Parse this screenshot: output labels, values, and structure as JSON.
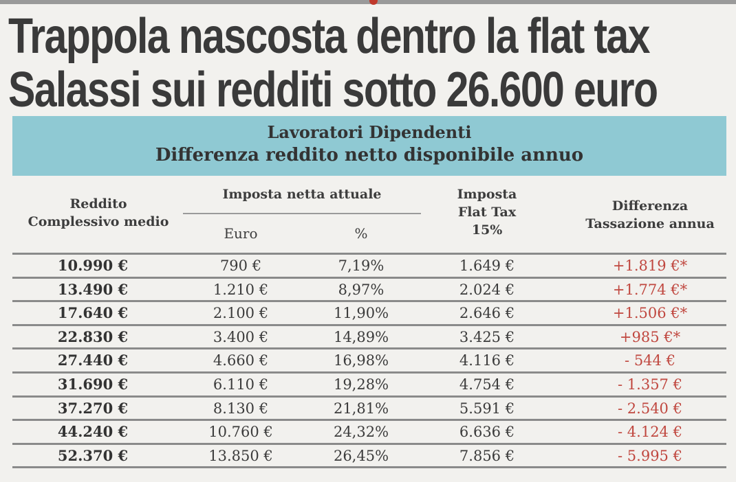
{
  "headline": {
    "line1": "Trappola nascosta dentro la flat tax",
    "line2": "Salassi sui redditi sotto 26.600 euro"
  },
  "banner": {
    "line1": "Lavoratori Dipendenti",
    "line2": "Differenza reddito netto disponibile annuo"
  },
  "columns": {
    "reddito": [
      "Reddito",
      "Complessivo medio"
    ],
    "imposta_attuale": "Imposta netta attuale",
    "euro": "Euro",
    "percent": "%",
    "flat_tax": [
      "Imposta",
      "Flat Tax",
      "15%"
    ],
    "differenza": [
      "Differenza",
      "Tassazione annua"
    ]
  },
  "colors": {
    "banner": "#8fc9d3",
    "difference_text": "#c0473f"
  },
  "rows": [
    [
      "10.990 €",
      "790 €",
      "7,19%",
      "1.649 €",
      "+1.819 €*"
    ],
    [
      "13.490 €",
      "1.210 €",
      "8,97%",
      "2.024 €",
      "+1.774 €*"
    ],
    [
      "17.640 €",
      "2.100 €",
      "11,90%",
      "2.646 €",
      "+1.506 €*"
    ],
    [
      "22.830 €",
      "3.400 €",
      "14,89%",
      "3.425 €",
      "+985 €*"
    ],
    [
      "27.440 €",
      "4.660 €",
      "16,98%",
      "4.116 €",
      "- 544 €"
    ],
    [
      "31.690 €",
      "6.110 €",
      "19,28%",
      "4.754 €",
      "- 1.357 €"
    ],
    [
      "37.270 €",
      "8.130 €",
      "21,81%",
      "5.591 €",
      "- 2.540 €"
    ],
    [
      "44.240 €",
      "10.760 €",
      "24,32%",
      "6.636 €",
      "- 4.124 €"
    ],
    [
      "52.370 €",
      "13.850 €",
      "26,45%",
      "7.856 €",
      "- 5.995 €"
    ]
  ]
}
